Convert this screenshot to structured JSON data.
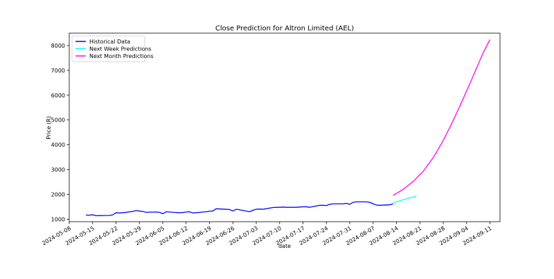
{
  "chart_data": {
    "type": "line",
    "title": "Close Prediction for Altron Limited (AEL)",
    "xlabel": "date",
    "ylabel": "Price (R)",
    "xlim": [
      "2024-05-08",
      "2024-09-14"
    ],
    "ylim": [
      900,
      8500
    ],
    "yticks": [
      1000,
      2000,
      3000,
      4000,
      5000,
      6000,
      7000,
      8000
    ],
    "xticks": [
      "2024-05-08",
      "2024-05-15",
      "2024-05-22",
      "2024-05-29",
      "2024-06-05",
      "2024-06-12",
      "2024-06-19",
      "2024-06-26",
      "2024-07-03",
      "2024-07-10",
      "2024-07-17",
      "2024-07-24",
      "2024-07-31",
      "2024-08-07",
      "2024-08-14",
      "2024-08-21",
      "2024-08-28",
      "2024-09-04",
      "2024-09-11"
    ],
    "grid": false,
    "legend_position": "top-left",
    "series": [
      {
        "name": "Historical Data",
        "color": "#0000ff",
        "x": [
          "2024-05-13",
          "2024-05-14",
          "2024-05-15",
          "2024-05-16",
          "2024-05-17",
          "2024-05-20",
          "2024-05-21",
          "2024-05-22",
          "2024-05-23",
          "2024-05-24",
          "2024-05-27",
          "2024-05-28",
          "2024-05-29",
          "2024-05-30",
          "2024-05-31",
          "2024-06-03",
          "2024-06-04",
          "2024-06-05",
          "2024-06-06",
          "2024-06-07",
          "2024-06-10",
          "2024-06-11",
          "2024-06-12",
          "2024-06-13",
          "2024-06-14",
          "2024-06-17",
          "2024-06-18",
          "2024-06-19",
          "2024-06-20",
          "2024-06-21",
          "2024-06-24",
          "2024-06-25",
          "2024-06-26",
          "2024-06-27",
          "2024-06-28",
          "2024-07-01",
          "2024-07-02",
          "2024-07-03",
          "2024-07-04",
          "2024-07-05",
          "2024-07-08",
          "2024-07-09",
          "2024-07-10",
          "2024-07-11",
          "2024-07-12",
          "2024-07-15",
          "2024-07-16",
          "2024-07-17",
          "2024-07-18",
          "2024-07-19",
          "2024-07-22",
          "2024-07-23",
          "2024-07-24",
          "2024-07-25",
          "2024-07-26",
          "2024-07-29",
          "2024-07-30",
          "2024-07-31",
          "2024-08-01",
          "2024-08-02",
          "2024-08-05",
          "2024-08-06",
          "2024-08-07",
          "2024-08-08",
          "2024-08-09",
          "2024-08-12",
          "2024-08-13"
        ],
        "values": [
          1170,
          1160,
          1180,
          1140,
          1145,
          1150,
          1175,
          1260,
          1250,
          1260,
          1310,
          1350,
          1330,
          1310,
          1280,
          1290,
          1280,
          1220,
          1300,
          1290,
          1260,
          1270,
          1290,
          1300,
          1250,
          1290,
          1300,
          1320,
          1330,
          1420,
          1400,
          1390,
          1330,
          1400,
          1380,
          1300,
          1360,
          1400,
          1410,
          1400,
          1470,
          1480,
          1480,
          1490,
          1480,
          1480,
          1490,
          1500,
          1500,
          1480,
          1560,
          1560,
          1550,
          1600,
          1620,
          1620,
          1640,
          1600,
          1680,
          1700,
          1700,
          1680,
          1620,
          1570,
          1560,
          1580,
          1620
        ]
      },
      {
        "name": "Next Week Predictions",
        "color": "#00ffff",
        "x": [
          "2024-08-13",
          "2024-08-14",
          "2024-08-15",
          "2024-08-16",
          "2024-08-17",
          "2024-08-18",
          "2024-08-19",
          "2024-08-20"
        ],
        "values": [
          1650,
          1700,
          1740,
          1780,
          1820,
          1860,
          1900,
          1930
        ]
      },
      {
        "name": "Next Month Predictions",
        "color": "#ff00ff",
        "x": [
          "2024-08-13",
          "2024-08-16",
          "2024-08-19",
          "2024-08-22",
          "2024-08-25",
          "2024-08-28",
          "2024-08-31",
          "2024-09-03",
          "2024-09-06",
          "2024-09-09",
          "2024-09-11"
        ],
        "values": [
          1960,
          2200,
          2520,
          2930,
          3480,
          4170,
          4980,
          5860,
          6780,
          7720,
          8240
        ]
      }
    ]
  }
}
